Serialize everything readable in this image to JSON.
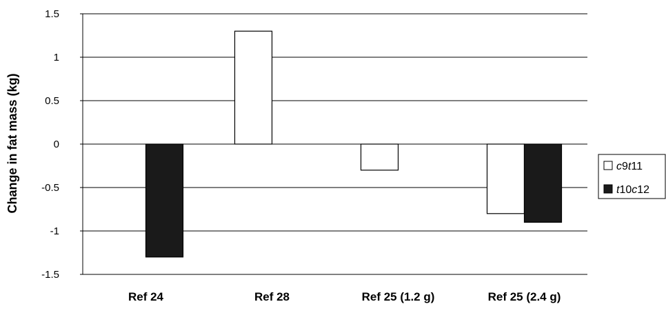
{
  "chart_data": {
    "type": "bar",
    "title": "",
    "xlabel": "",
    "ylabel": "Change in fat mass (kg)",
    "ylim": [
      -1.5,
      1.5
    ],
    "yticks": [
      "1.5",
      "1",
      "0.5",
      "0",
      "-0.5",
      "-1",
      "-1.5"
    ],
    "grid": true,
    "legend_position": "right",
    "categories": [
      "Ref 24",
      "Ref 28",
      "Ref 25 (1.2 g)",
      "Ref 25 (2.4 g)"
    ],
    "series": [
      {
        "name_parts": [
          [
            "c",
            true
          ],
          [
            "9",
            false
          ],
          [
            "t",
            true
          ],
          [
            "11",
            false
          ]
        ],
        "fill": "#ffffff",
        "values": [
          null,
          1.3,
          -0.3,
          -0.8
        ]
      },
      {
        "name_parts": [
          [
            "t",
            true
          ],
          [
            "10",
            false
          ],
          [
            "c",
            true
          ],
          [
            "12",
            false
          ]
        ],
        "fill": "#1a1a1a",
        "values": [
          -1.3,
          null,
          null,
          -0.9
        ]
      }
    ]
  }
}
